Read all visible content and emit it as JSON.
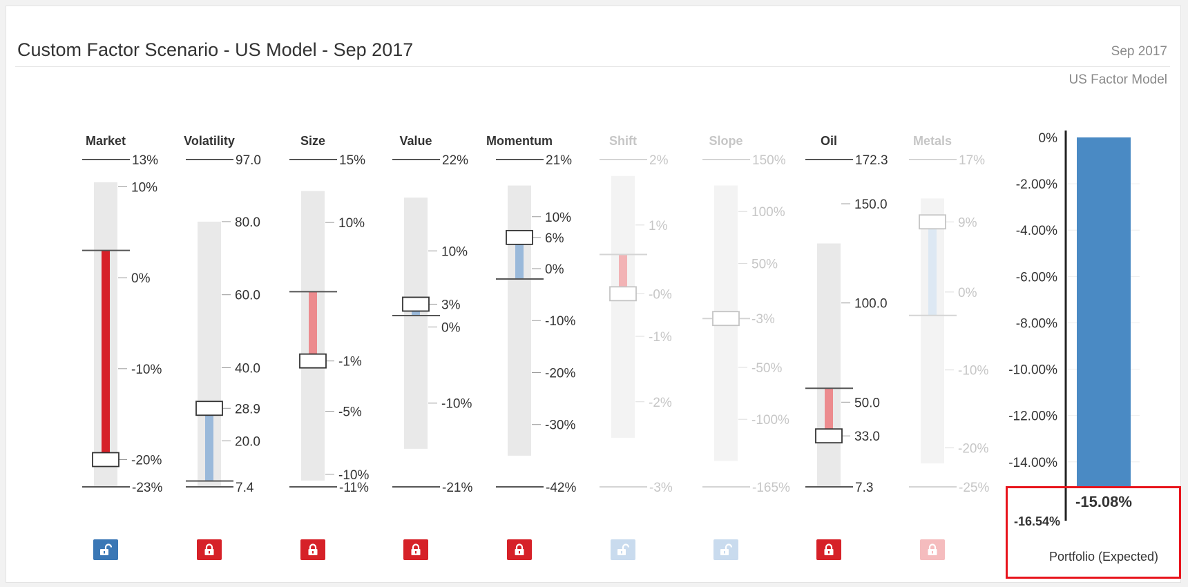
{
  "header": {
    "title": "Custom Factor Scenario - US Model - Sep 2017",
    "date": "Sep 2017",
    "model": "US Factor Model"
  },
  "factors": [
    {
      "name": "Market",
      "active": true,
      "locked": false,
      "top_label": "13%",
      "bottom_label": "-23%",
      "ticks": [
        {
          "label": "10%",
          "v": 10
        },
        {
          "label": "0%",
          "v": 0
        },
        {
          "label": "-10%",
          "v": -10
        },
        {
          "label": "-20%",
          "v": -20
        }
      ],
      "current_label": "",
      "min": -23,
      "max": 13,
      "base": 3,
      "handle": -20,
      "range": {
        "top": 10.5,
        "bottom": -23
      },
      "bar_color": "#d62128"
    },
    {
      "name": "Volatility",
      "active": true,
      "locked": true,
      "top_label": "97.0",
      "bottom_label": "7.4",
      "ticks": [
        {
          "label": "80.0",
          "v": 80
        },
        {
          "label": "60.0",
          "v": 60
        },
        {
          "label": "40.0",
          "v": 40
        },
        {
          "label": "28.9",
          "v": 28.9
        },
        {
          "label": "20.0",
          "v": 20
        }
      ],
      "current_label": "",
      "min": 7.4,
      "max": 97,
      "base": 9,
      "handle": 28.9,
      "range": {
        "top": 80,
        "bottom": 7.4
      },
      "bar_color": "#9ab9da"
    },
    {
      "name": "Size",
      "active": true,
      "locked": true,
      "top_label": "15%",
      "bottom_label": "-11%",
      "ticks": [
        {
          "label": "10%",
          "v": 10
        },
        {
          "label": "-1%",
          "v": -1
        },
        {
          "label": "-5%",
          "v": -5
        },
        {
          "label": "-10%",
          "v": -10
        }
      ],
      "current_label": "",
      "min": -11,
      "max": 15,
      "base": 4.5,
      "handle": -1,
      "range": {
        "top": 12.5,
        "bottom": -10.5
      },
      "bar_color": "#ec8b8e"
    },
    {
      "name": "Value",
      "active": true,
      "locked": true,
      "top_label": "22%",
      "bottom_label": "-21%",
      "ticks": [
        {
          "label": "10%",
          "v": 10
        },
        {
          "label": "3%",
          "v": 3
        },
        {
          "label": "0%",
          "v": 0
        },
        {
          "label": "-10%",
          "v": -10
        }
      ],
      "current_label": "",
      "min": -21,
      "max": 22,
      "base": 1.5,
      "handle": 3,
      "range": {
        "top": 17,
        "bottom": -16
      },
      "bar_color": "#9ab9da"
    },
    {
      "name": "Momentum",
      "active": true,
      "locked": true,
      "top_label": "21%",
      "bottom_label": "-42%",
      "ticks": [
        {
          "label": "10%",
          "v": 10
        },
        {
          "label": "6%",
          "v": 6
        },
        {
          "label": "0%",
          "v": 0
        },
        {
          "label": "-10%",
          "v": -10
        },
        {
          "label": "-20%",
          "v": -20
        },
        {
          "label": "-30%",
          "v": -30
        }
      ],
      "current_label": "",
      "min": -42,
      "max": 21,
      "base": -2,
      "handle": 6,
      "range": {
        "top": 16,
        "bottom": -36
      },
      "bar_color": "#9ab9da"
    },
    {
      "name": "Shift",
      "active": false,
      "locked": false,
      "top_label": "2%",
      "bottom_label": "-3%",
      "ticks": [
        {
          "label": "1%",
          "v": 1
        },
        {
          "label": "-0%",
          "v": -0.05
        },
        {
          "label": "-1%",
          "v": -0.7
        },
        {
          "label": "-2%",
          "v": -1.7
        }
      ],
      "current_label": "",
      "min": -3,
      "max": 2,
      "base": 0.55,
      "handle": -0.05,
      "range": {
        "top": 1.75,
        "bottom": -2.25
      },
      "bar_color": "#f2b3b5"
    },
    {
      "name": "Slope",
      "active": false,
      "locked": false,
      "top_label": "150%",
      "bottom_label": "-165%",
      "ticks": [
        {
          "label": "100%",
          "v": 100
        },
        {
          "label": "50%",
          "v": 50
        },
        {
          "label": "-3%",
          "v": -3
        },
        {
          "label": "-50%",
          "v": -50
        },
        {
          "label": "-100%",
          "v": -100
        }
      ],
      "current_label": "",
      "min": -165,
      "max": 150,
      "base": -3,
      "handle": -3,
      "range": {
        "top": 125,
        "bottom": -140
      },
      "bar_color": "#c8d8ea"
    },
    {
      "name": "Oil",
      "active": true,
      "locked": true,
      "top_label": "172.3",
      "bottom_label": "7.3",
      "ticks": [
        {
          "label": "150.0",
          "v": 150
        },
        {
          "label": "100.0",
          "v": 100
        },
        {
          "label": "50.0",
          "v": 50
        },
        {
          "label": "33.0",
          "v": 33
        }
      ],
      "current_label": "",
      "min": 7.3,
      "max": 172.3,
      "base": 57,
      "handle": 33,
      "range": {
        "top": 130,
        "bottom": 7.3
      },
      "bar_color": "#ec8b8e"
    },
    {
      "name": "Metals",
      "active": false,
      "locked": true,
      "top_label": "17%",
      "bottom_label": "-25%",
      "ticks": [
        {
          "label": "9%",
          "v": 9
        },
        {
          "label": "0%",
          "v": 0
        },
        {
          "label": "-10%",
          "v": -10
        },
        {
          "label": "-20%",
          "v": -20
        }
      ],
      "current_label": "",
      "min": -25,
      "max": 17,
      "base": -3,
      "handle": 9,
      "range": {
        "top": 12,
        "bottom": -22
      },
      "bar_color": "#dde8f3"
    }
  ],
  "chart_data": {
    "type": "bar",
    "categories": [
      "Portfolio (Expected)"
    ],
    "values": [
      -15.08
    ],
    "value_label": "-15.08%",
    "ylim": [
      -16.54,
      0
    ],
    "top_label": "0%",
    "min_label": "-16.54%",
    "yticks": [
      {
        "v": -2,
        "label": "-2.00%"
      },
      {
        "v": -4,
        "label": "-4.00%"
      },
      {
        "v": -6,
        "label": "-6.00%"
      },
      {
        "v": -8,
        "label": "-8.00%"
      },
      {
        "v": -10,
        "label": "-10.00%"
      },
      {
        "v": -12,
        "label": "-12.00%"
      },
      {
        "v": -14,
        "label": "-14.00%"
      }
    ],
    "bar_color": "#4a8ac4",
    "xlabel": "Portfolio (Expected)"
  },
  "colors": {
    "unlocked_active": "#3a77b5",
    "locked_active": "#d62128",
    "unlocked_inactive": "#c9dbee",
    "locked_inactive": "#f5bcbe",
    "text_active": "#333333",
    "text_inactive": "#c6c6c6"
  },
  "icons": {
    "lock": "lock-icon",
    "unlock": "unlock-icon"
  }
}
